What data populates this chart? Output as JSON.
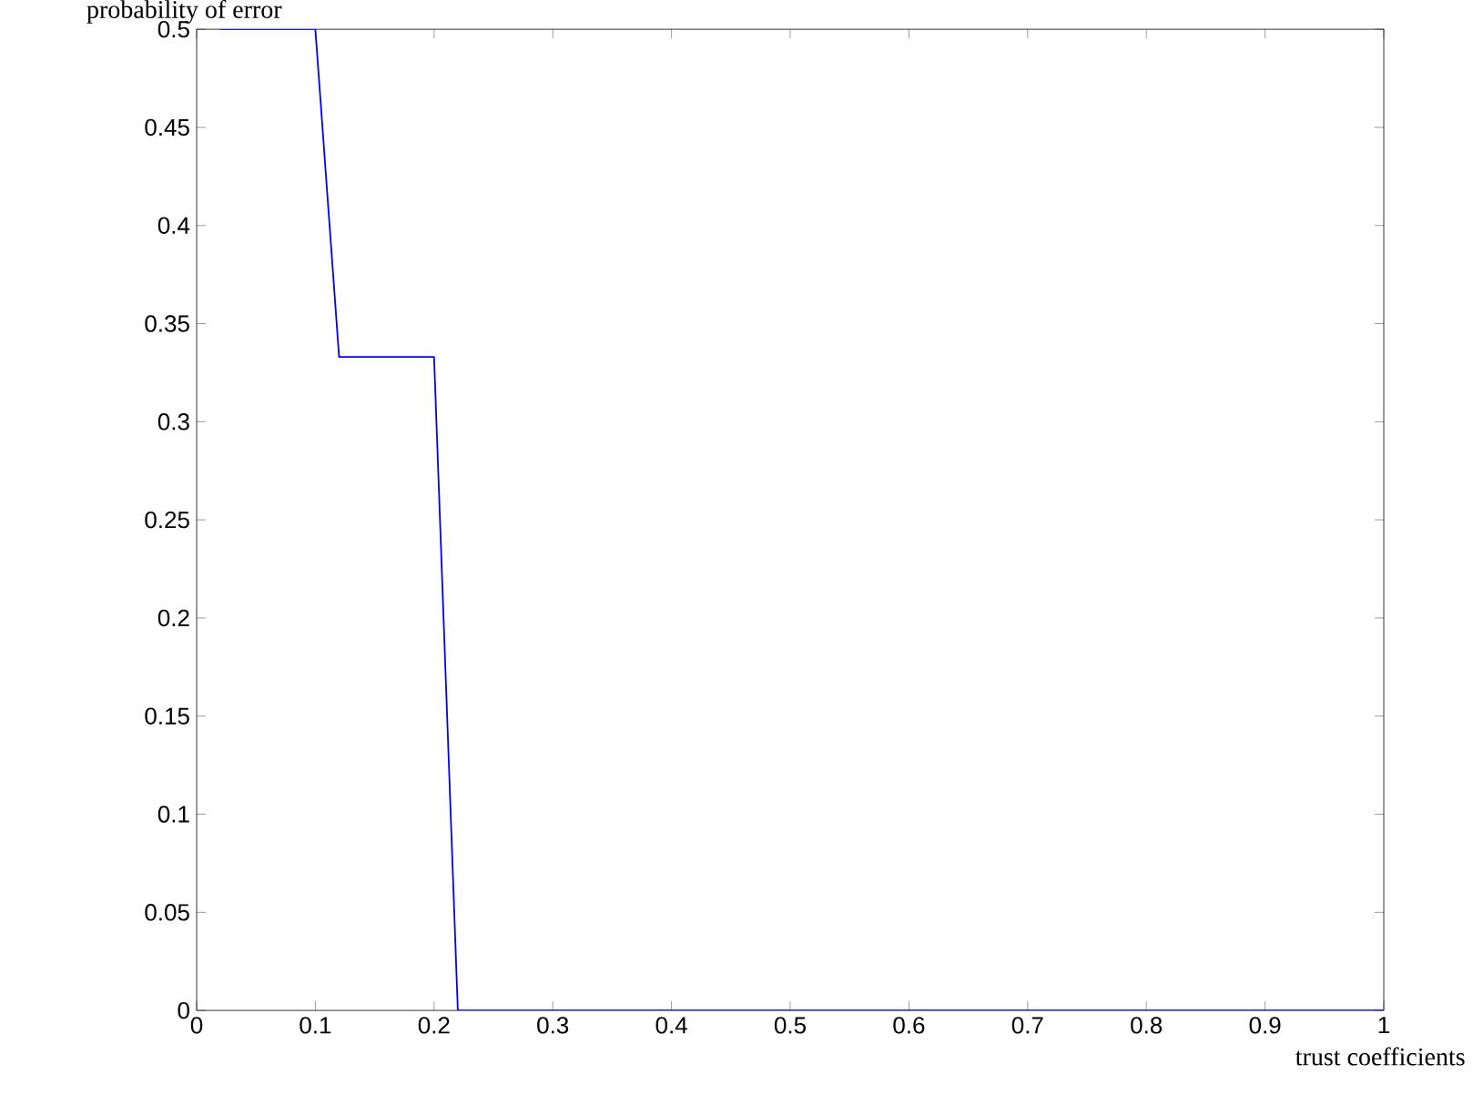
{
  "chart_data": {
    "type": "line",
    "xlabel": "trust coefficients",
    "ylabel": "probability of error",
    "x": [
      0.02,
      0.1,
      0.12,
      0.2,
      0.22,
      1
    ],
    "values": [
      0.5,
      0.5,
      0.333,
      0.333,
      0,
      0
    ],
    "color": "#0000ff",
    "marker": "none",
    "line_style": "solid",
    "grid": false,
    "xlim": [
      0,
      1
    ],
    "xticks": [
      0,
      0.1,
      0.2,
      0.3,
      0.4,
      0.5,
      0.6,
      0.7,
      0.8,
      0.9,
      1
    ],
    "ylim": [
      0,
      0.5
    ],
    "yticks": [
      0,
      0.05,
      0.1,
      0.15,
      0.2,
      0.25,
      0.3,
      0.35,
      0.4,
      0.45,
      0.5
    ]
  }
}
